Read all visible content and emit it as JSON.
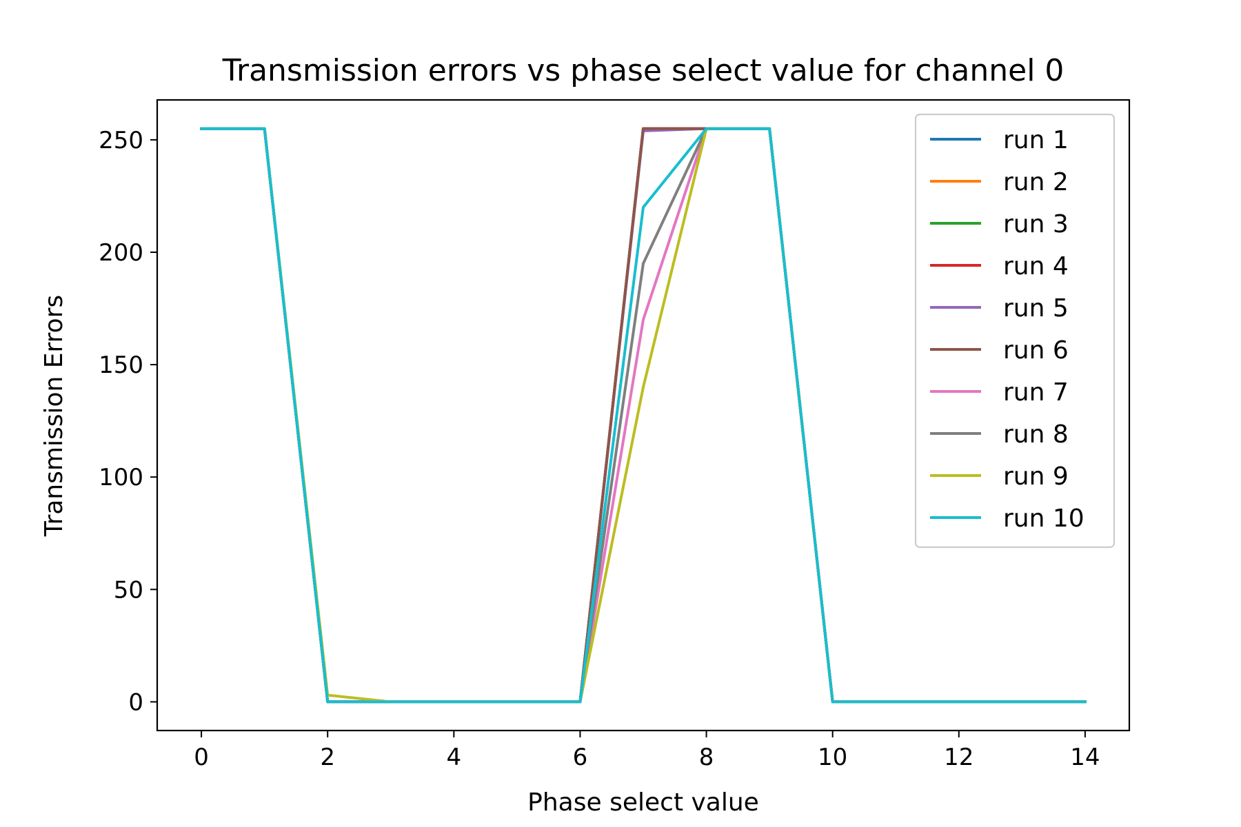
{
  "chart_data": {
    "type": "line",
    "title": "Transmission errors vs phase select value for channel 0",
    "xlabel": "Phase select value",
    "ylabel": "Transmission Errors",
    "xlim": [
      -0.7,
      14.7
    ],
    "ylim": [
      -12.75,
      267.75
    ],
    "xticks": [
      0,
      2,
      4,
      6,
      8,
      10,
      12,
      14
    ],
    "yticks": [
      0,
      50,
      100,
      150,
      200,
      250
    ],
    "grid": false,
    "legend_position": "top-right",
    "x": [
      0,
      1,
      2,
      3,
      4,
      5,
      6,
      7,
      8,
      9,
      10,
      11,
      12,
      13,
      14
    ],
    "series": [
      {
        "name": "run 1",
        "color": "#1f77b4",
        "values": [
          255,
          255,
          0,
          0,
          0,
          0,
          0,
          255,
          255,
          255,
          0,
          0,
          0,
          0,
          0
        ]
      },
      {
        "name": "run 2",
        "color": "#ff7f0e",
        "values": [
          255,
          255,
          0,
          0,
          0,
          0,
          0,
          255,
          255,
          255,
          0,
          0,
          0,
          0,
          0
        ]
      },
      {
        "name": "run 3",
        "color": "#2ca02c",
        "values": [
          255,
          255,
          0,
          0,
          0,
          0,
          0,
          255,
          255,
          255,
          0,
          0,
          0,
          0,
          0
        ]
      },
      {
        "name": "run 4",
        "color": "#d62728",
        "values": [
          255,
          255,
          0,
          0,
          0,
          0,
          0,
          255,
          255,
          255,
          0,
          0,
          0,
          0,
          0
        ]
      },
      {
        "name": "run 5",
        "color": "#9467bd",
        "values": [
          255,
          255,
          0,
          0,
          0,
          0,
          0,
          254,
          255,
          255,
          0,
          0,
          0,
          0,
          0
        ]
      },
      {
        "name": "run 6",
        "color": "#8c564b",
        "values": [
          255,
          255,
          0,
          0,
          0,
          0,
          0,
          255,
          255,
          255,
          0,
          0,
          0,
          0,
          0
        ]
      },
      {
        "name": "run 7",
        "color": "#e377c2",
        "values": [
          255,
          255,
          0,
          0,
          0,
          0,
          0,
          170,
          255,
          255,
          0,
          0,
          0,
          0,
          0
        ]
      },
      {
        "name": "run 8",
        "color": "#7f7f7f",
        "values": [
          255,
          255,
          0,
          0,
          0,
          0,
          0,
          195,
          255,
          255,
          0,
          0,
          0,
          0,
          0
        ]
      },
      {
        "name": "run 9",
        "color": "#bcbd22",
        "values": [
          255,
          255,
          3,
          0,
          0,
          0,
          0,
          140,
          255,
          255,
          0,
          0,
          0,
          0,
          0
        ]
      },
      {
        "name": "run 10",
        "color": "#17becf",
        "values": [
          255,
          255,
          0,
          0,
          0,
          0,
          0,
          220,
          255,
          255,
          0,
          0,
          0,
          0,
          0
        ]
      }
    ]
  }
}
